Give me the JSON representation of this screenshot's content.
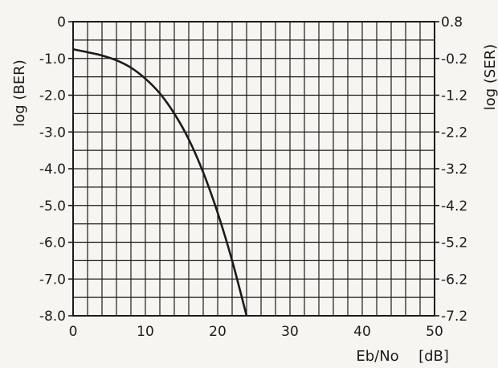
{
  "chart_data": {
    "type": "line",
    "title": "",
    "xlabel": "Eb/No",
    "xunit": "[dB]",
    "ylabel_left": "log (BER)",
    "ylabel_right": "log (SER)",
    "xlim": [
      0,
      50
    ],
    "ylim": [
      -8.0,
      0
    ],
    "ylim_right": [
      -7.2,
      0.8
    ],
    "x_ticks": [
      "0",
      "10",
      "20",
      "30",
      "40",
      "50"
    ],
    "y_ticks_left": [
      "0",
      "-1.0",
      "-2.0",
      "-3.0",
      "-4.0",
      "-5.0",
      "-6.0",
      "-7.0",
      "-8.0"
    ],
    "y_ticks_right": [
      "0.8",
      "-0.2",
      "-1.2",
      "-2.2",
      "-3.2",
      "-4.2",
      "-5.2",
      "-6.2",
      "-7.2"
    ],
    "grid": true,
    "series": [
      {
        "x": [
          0,
          2,
          4,
          6,
          8,
          10,
          12,
          14,
          16,
          18,
          20,
          22,
          24
        ],
        "y": [
          -0.75,
          -0.83,
          -0.92,
          -1.05,
          -1.25,
          -1.55,
          -1.95,
          -2.5,
          -3.2,
          -4.1,
          -5.2,
          -6.5,
          -8.0
        ]
      }
    ],
    "line_color": "#1b1b1b"
  }
}
